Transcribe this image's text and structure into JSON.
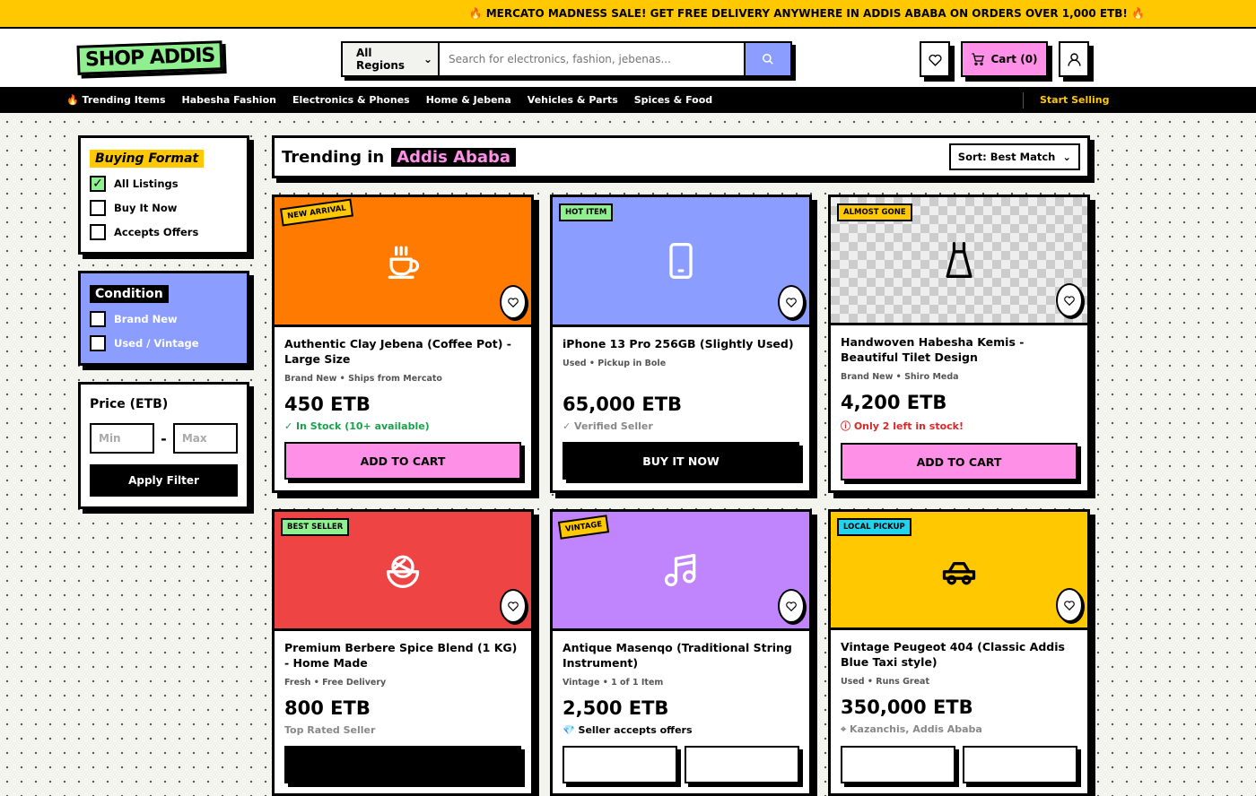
{
  "banner": {
    "text": "🔥 MERCATO MADNESS SALE! GET FREE DELIVERY ANYWHERE IN ADDIS ABABA ON ORDERS OVER 1,000 ETB! 🔥"
  },
  "header": {
    "logo": "SHOP ADDIS",
    "region": "All Regions",
    "search_placeholder": "Search for electronics, fashion, jebenas...",
    "cart": "Cart (0)"
  },
  "nav": {
    "items": [
      "🔥 Trending Items",
      "Habesha Fashion",
      "Electronics & Phones",
      "Home & Jebena",
      "Vehicles & Parts",
      "Spices & Food"
    ],
    "sell": "Start Selling"
  },
  "sidebar": {
    "format": {
      "title": "Buying Format",
      "options": [
        {
          "label": "All Listings",
          "checked": true
        },
        {
          "label": "Buy It Now",
          "checked": false
        },
        {
          "label": "Accepts Offers",
          "checked": false
        }
      ]
    },
    "condition": {
      "title": "Condition",
      "options": [
        {
          "label": "Brand New",
          "checked": false
        },
        {
          "label": "Used / Vintage",
          "checked": false
        }
      ]
    },
    "price": {
      "title": "Price (ETB)",
      "min_placeholder": "Min",
      "max_placeholder": "Max",
      "separator": "-",
      "apply": "Apply Filter"
    }
  },
  "main": {
    "heading": "Trending in",
    "city": "Addis Ababa",
    "sort": "Sort: Best Match"
  },
  "colors": {
    "yellow": "#ffc800",
    "pink": "#ff90e8",
    "blue": "#8b9dff",
    "green": "#90f090"
  },
  "products": [
    {
      "badge": "NEW ARRIVAL",
      "badge_color": "#ffc800",
      "rotate": true,
      "bg": "#ff7a00",
      "icon": "coffee-cup",
      "icon_color": "#fff",
      "title": "Authentic Clay Jebena (Coffee Pot) - Large Size",
      "meta": "Brand New • Ships from Mercato",
      "price": "450 ETB",
      "status": "✓ In Stock (10+ available)",
      "status_color": "#16a34a",
      "button": "ADD TO CART",
      "button_style": "pink"
    },
    {
      "badge": "HOT ITEM",
      "badge_color": "#90f090",
      "rotate": false,
      "bg": "#8b9dff",
      "icon": "phone",
      "icon_color": "#fff",
      "title": "iPhone 13 Pro 256GB (Slightly Used)",
      "meta": "Used • Pickup in Bole",
      "price": "65,000 ETB",
      "status": "✓ Verified Seller",
      "status_color": "#888",
      "button": "BUY IT NOW",
      "button_style": "black"
    },
    {
      "badge": "ALMOST GONE",
      "badge_color": "#ffc800",
      "rotate": false,
      "bg": "checker",
      "icon": "dress",
      "icon_color": "#000",
      "title": "Handwoven Habesha Kemis - Beautiful Tilet Design",
      "meta": "Brand New • Shiro Meda",
      "price": "4,200 ETB",
      "status": "ⓘ Only 2 left in stock!",
      "status_color": "#dc2626",
      "button": "ADD TO CART",
      "button_style": "pink"
    },
    {
      "badge": "BEST SELLER",
      "badge_color": "#90f090",
      "rotate": false,
      "bg": "#ef4444",
      "icon": "bowl",
      "icon_color": "#fff",
      "title": "Premium Berbere Spice Blend (1 KG) - Home Made",
      "meta": "Fresh • Free Delivery",
      "price": "800 ETB",
      "status": "Top Rated Seller",
      "status_color": "#888",
      "button": "",
      "button_style": "black"
    },
    {
      "badge": "VINTAGE",
      "badge_color": "#ffc800",
      "rotate": true,
      "bg": "#c084fc",
      "icon": "music-note",
      "icon_color": "#fff",
      "title": "Antique Masenqo (Traditional String Instrument)",
      "meta": "Vintage • 1 of 1 Item",
      "price": "2,500 ETB",
      "status": "💎 Seller accepts offers",
      "status_color": "#000",
      "button": "",
      "button_style": "split"
    },
    {
      "badge": "LOCAL PICKUP",
      "badge_color": "#22d3ee",
      "rotate": false,
      "bg": "#ffc800",
      "icon": "car",
      "icon_color": "#000",
      "title": "Vintage Peugeot 404 (Classic Addis Blue Taxi style)",
      "meta": "Used • Runs Great",
      "price": "350,000 ETB",
      "status": "⌖ Kazanchis, Addis Ababa",
      "status_color": "#888",
      "button": "",
      "button_style": "split"
    }
  ]
}
